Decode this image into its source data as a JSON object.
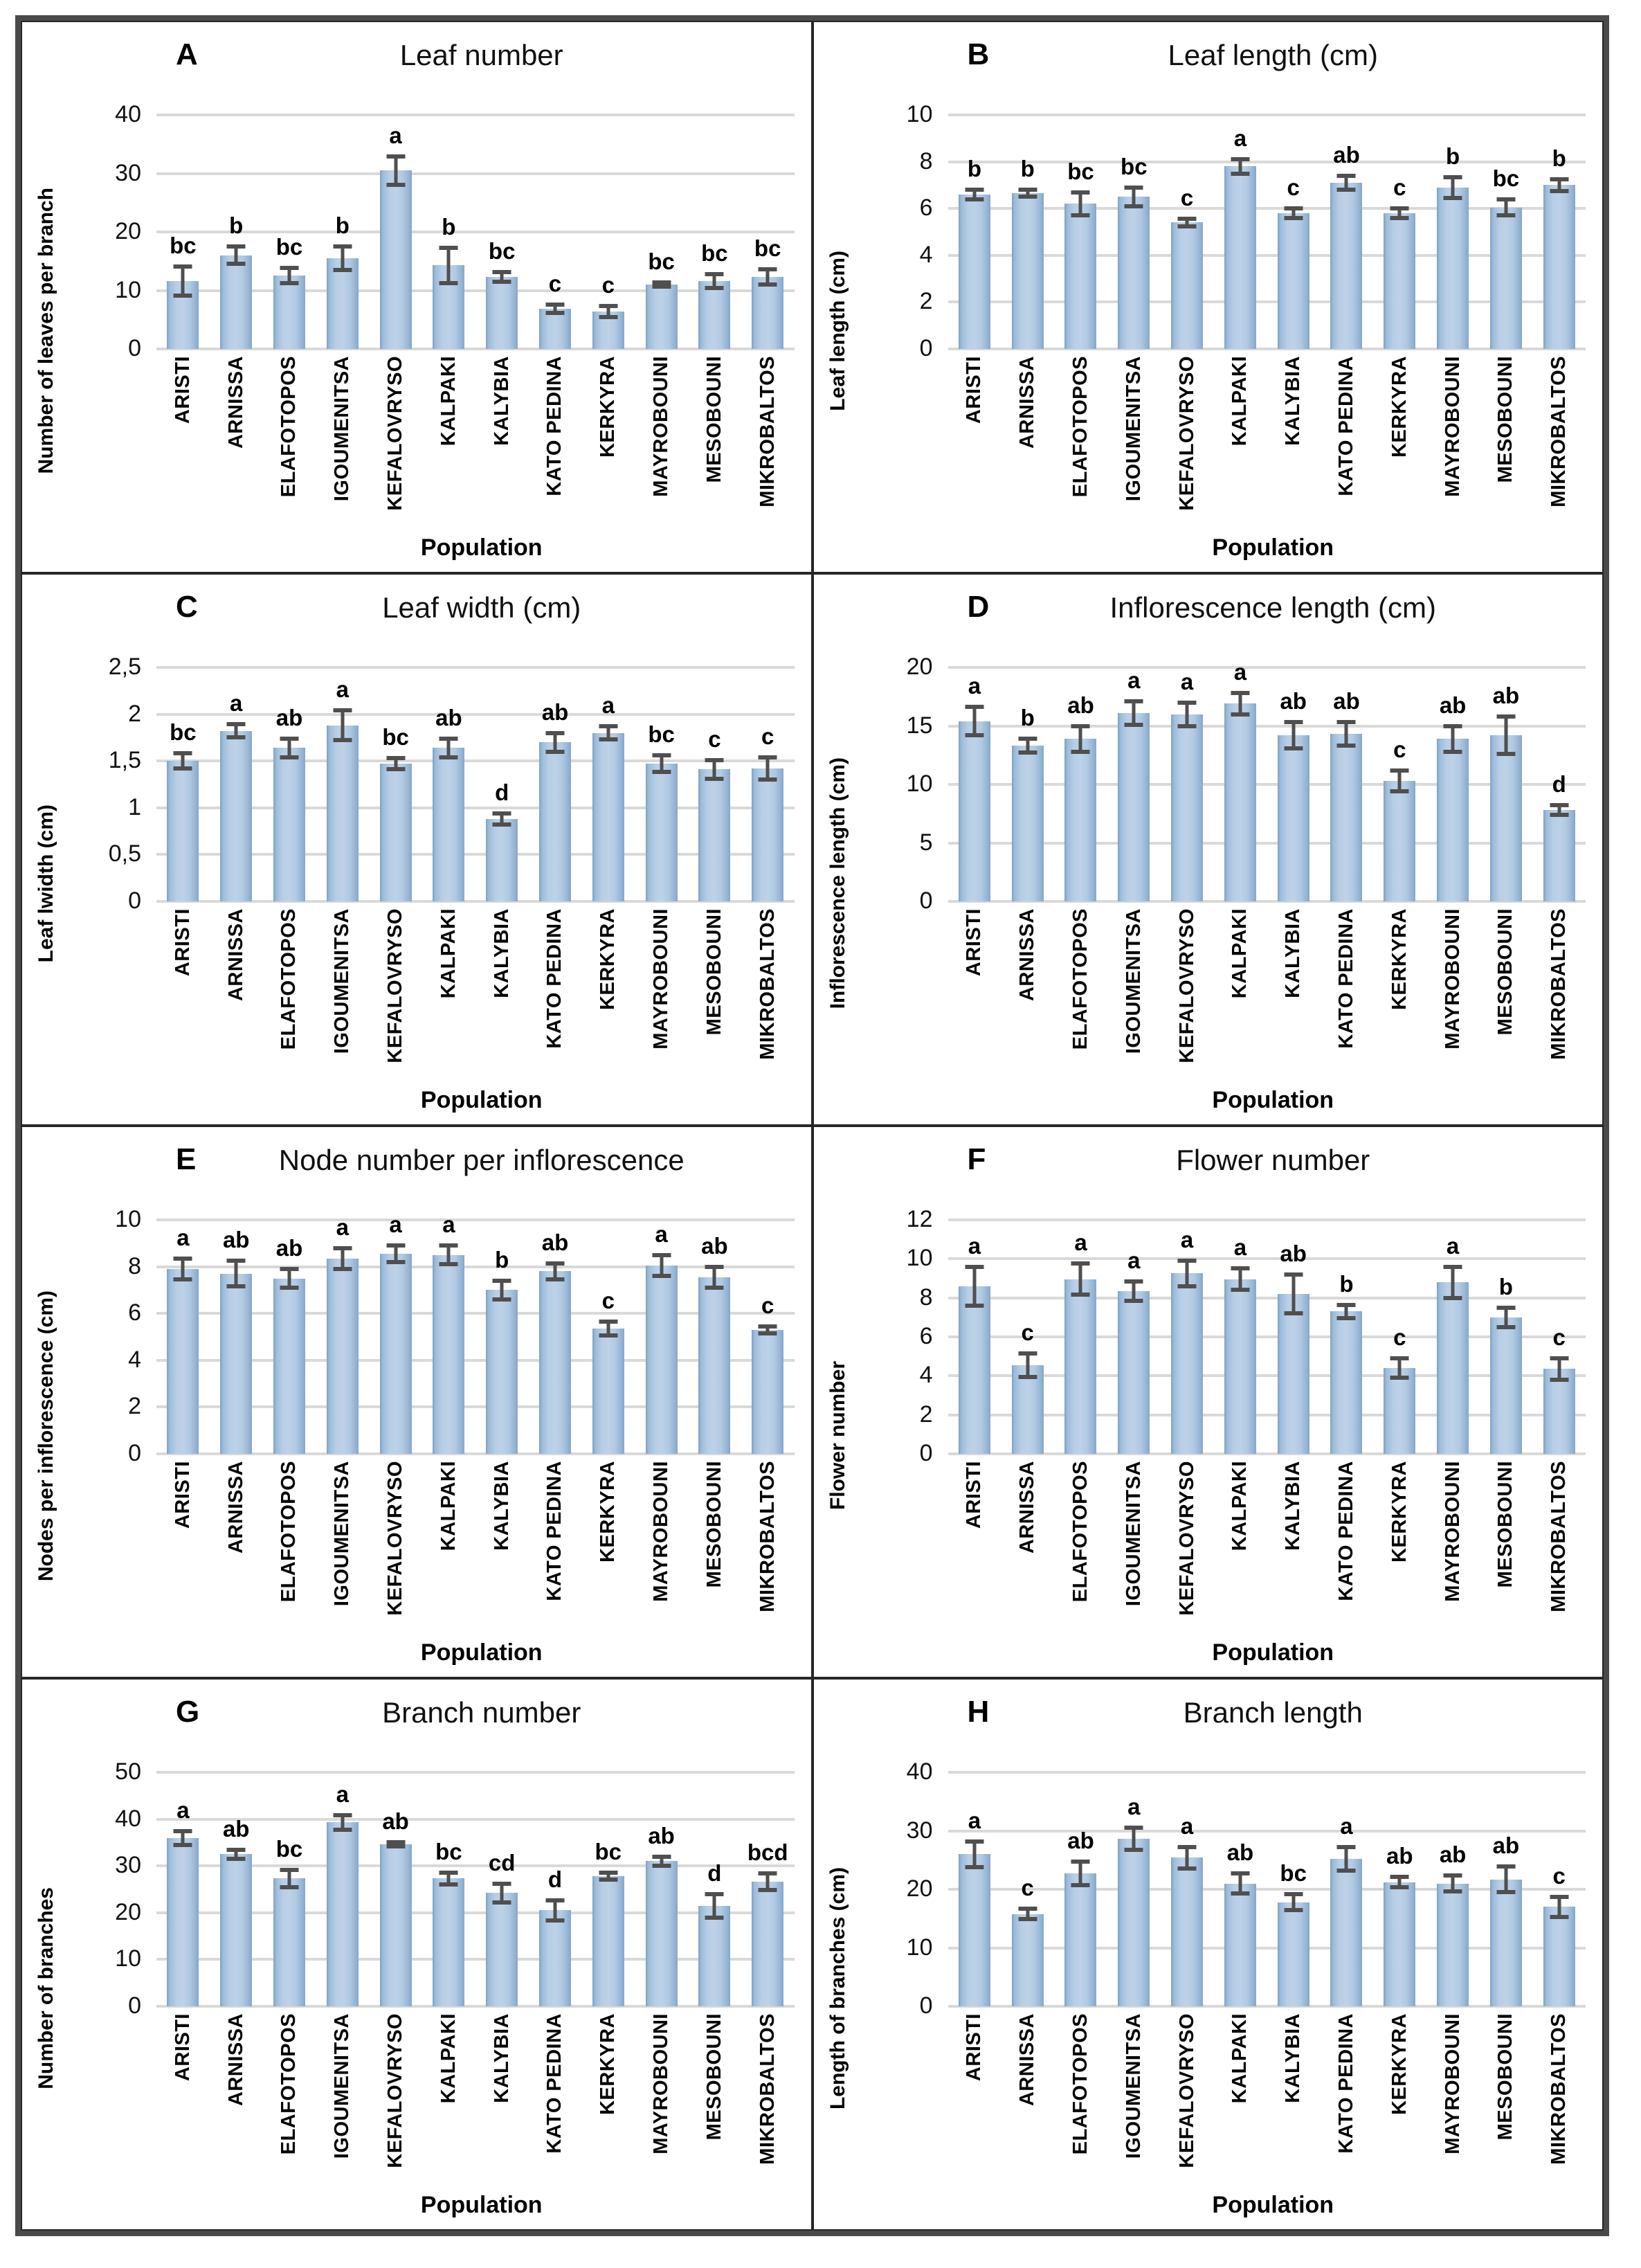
{
  "figure": {
    "x_axis_title": "Population",
    "colors": {
      "bar_edge": "#85a6c9",
      "bar_center": "#bdd2e8",
      "error_bar": "#4f4f4f",
      "gridline": "#d9d9d9",
      "outer_border": "#4a4a4a",
      "inner_border": "#262626",
      "text": "#000000"
    }
  },
  "chart_data": {
    "type": "bar",
    "error_bars": true,
    "legend": "none",
    "grid": "horizontal",
    "categories": [
      "ARISTI",
      "ARNISSA",
      "ELAFOTOPOS",
      "IGOUMENITSA",
      "KEFALOVRYSO",
      "KALPAKI",
      "KALYBIA",
      "KATO PEDINA",
      "KERKYRA",
      "MAYROBOUNI",
      "MESOBOUNI",
      "MIKROBALTOS"
    ],
    "x_axis_label": "Population",
    "charts": [
      {
        "panel": "A",
        "title": "Leaf number",
        "ylabel": "Number of leaves per branch",
        "ylim": [
          0,
          40
        ],
        "yticks": [
          "0",
          "10",
          "20",
          "30",
          "40"
        ],
        "values": [
          11.6,
          16.0,
          12.5,
          15.5,
          30.5,
          14.3,
          12.3,
          6.9,
          6.4,
          11.0,
          11.6,
          12.3
        ],
        "errors": [
          2.5,
          1.5,
          1.3,
          2.0,
          2.4,
          3.0,
          0.8,
          0.7,
          0.9,
          0.4,
          1.2,
          1.3
        ],
        "sig_letters": [
          "bc",
          "b",
          "bc",
          "b",
          "a",
          "b",
          "bc",
          "c",
          "c",
          "bc",
          "bc",
          "bc"
        ]
      },
      {
        "panel": "B",
        "title": "Leaf length (cm)",
        "ylabel": "Leaf length (cm)",
        "ylim": [
          0,
          10
        ],
        "yticks": [
          "0",
          "2",
          "4",
          "6",
          "8",
          "10"
        ],
        "values": [
          6.6,
          6.65,
          6.2,
          6.5,
          5.4,
          7.8,
          5.8,
          7.1,
          5.8,
          6.9,
          6.05,
          7.0
        ],
        "errors": [
          0.2,
          0.15,
          0.5,
          0.4,
          0.15,
          0.3,
          0.2,
          0.3,
          0.2,
          0.45,
          0.35,
          0.25
        ],
        "sig_letters": [
          "b",
          "b",
          "bc",
          "bc",
          "c",
          "a",
          "c",
          "ab",
          "c",
          "b",
          "bc",
          "b"
        ]
      },
      {
        "panel": "C",
        "title": "Leaf width (cm)",
        "ylabel": "Leaf lwidth (cm)",
        "ylim": [
          0,
          2.5
        ],
        "yticks": [
          "0",
          "0,5",
          "1",
          "1,5",
          "2",
          "2,5"
        ],
        "values": [
          1.5,
          1.82,
          1.64,
          1.88,
          1.47,
          1.64,
          0.88,
          1.7,
          1.8,
          1.47,
          1.41,
          1.42
        ],
        "errors": [
          0.08,
          0.07,
          0.1,
          0.16,
          0.06,
          0.1,
          0.06,
          0.1,
          0.07,
          0.09,
          0.1,
          0.12
        ],
        "sig_letters": [
          "bc",
          "a",
          "ab",
          "a",
          "bc",
          "ab",
          "d",
          "ab",
          "a",
          "bc",
          "c",
          "c"
        ]
      },
      {
        "panel": "D",
        "title": "Inflorescence length (cm)",
        "ylabel": "Inflorescence length (cm)",
        "ylim": [
          0,
          20
        ],
        "yticks": [
          "0",
          "5",
          "10",
          "15",
          "20"
        ],
        "values": [
          15.4,
          13.3,
          13.9,
          16.1,
          16.0,
          16.9,
          14.2,
          14.3,
          10.3,
          13.9,
          14.2,
          7.8
        ],
        "errors": [
          1.2,
          0.6,
          1.1,
          1.0,
          1.0,
          0.9,
          1.1,
          1.0,
          0.9,
          1.1,
          1.6,
          0.4
        ],
        "sig_letters": [
          "a",
          "b",
          "ab",
          "a",
          "a",
          "a",
          "ab",
          "ab",
          "c",
          "ab",
          "ab",
          "d"
        ]
      },
      {
        "panel": "E",
        "title": "Node number per inflorescence",
        "ylabel": "Nodes per inflorescence (cm)",
        "ylim": [
          0,
          10
        ],
        "yticks": [
          "0",
          "2",
          "4",
          "6",
          "8",
          "10"
        ],
        "values": [
          7.9,
          7.7,
          7.5,
          8.35,
          8.55,
          8.5,
          7.0,
          7.8,
          5.35,
          8.05,
          7.55,
          5.3
        ],
        "errors": [
          0.45,
          0.55,
          0.4,
          0.45,
          0.35,
          0.4,
          0.4,
          0.35,
          0.3,
          0.45,
          0.45,
          0.15
        ],
        "sig_letters": [
          "a",
          "ab",
          "ab",
          "a",
          "a",
          "a",
          "b",
          "ab",
          "c",
          "a",
          "ab",
          "c"
        ]
      },
      {
        "panel": "F",
        "title": "Flower number",
        "ylabel": "Flower number",
        "ylim": [
          0,
          12
        ],
        "yticks": [
          "0",
          "2",
          "4",
          "6",
          "8",
          "10",
          "12"
        ],
        "values": [
          8.6,
          4.55,
          8.95,
          8.35,
          9.25,
          8.95,
          8.2,
          7.3,
          4.4,
          8.8,
          7.0,
          4.35
        ],
        "errors": [
          1.0,
          0.6,
          0.8,
          0.5,
          0.65,
          0.55,
          1.0,
          0.35,
          0.5,
          0.8,
          0.5,
          0.55
        ],
        "sig_letters": [
          "a",
          "c",
          "a",
          "a",
          "a",
          "a",
          "ab",
          "b",
          "c",
          "a",
          "b",
          "c"
        ]
      },
      {
        "panel": "G",
        "title": "Branch number",
        "ylabel": "Number of branches",
        "ylim": [
          0,
          50
        ],
        "yticks": [
          "0",
          "10",
          "20",
          "30",
          "40",
          "50"
        ],
        "values": [
          36.0,
          32.5,
          27.3,
          39.3,
          34.6,
          27.3,
          24.2,
          20.5,
          27.8,
          31.0,
          21.5,
          26.6
        ],
        "errors": [
          1.5,
          1.0,
          1.8,
          1.6,
          0.4,
          1.2,
          2.0,
          2.2,
          0.8,
          0.9,
          2.5,
          1.8
        ],
        "sig_letters": [
          "a",
          "ab",
          "bc",
          "a",
          "ab",
          "bc",
          "cd",
          "d",
          "bc",
          "ab",
          "d",
          "bcd"
        ]
      },
      {
        "panel": "H",
        "title": "Branch length",
        "ylabel": "Length of branches (cm)",
        "ylim": [
          0,
          40
        ],
        "yticks": [
          "0",
          "10",
          "20",
          "30",
          "40"
        ],
        "values": [
          26.0,
          15.8,
          22.7,
          28.6,
          25.4,
          21.0,
          17.8,
          25.2,
          21.2,
          21.0,
          21.7,
          17.0
        ],
        "errors": [
          2.2,
          0.9,
          2.0,
          1.9,
          1.8,
          1.7,
          1.4,
          2.0,
          0.9,
          1.4,
          2.2,
          1.7
        ],
        "sig_letters": [
          "a",
          "c",
          "ab",
          "a",
          "a",
          "ab",
          "bc",
          "a",
          "ab",
          "ab",
          "ab",
          "c"
        ]
      }
    ]
  }
}
